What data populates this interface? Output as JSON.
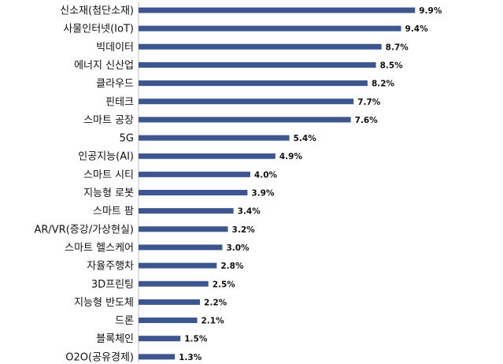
{
  "chart_data": {
    "type": "bar",
    "orientation": "horizontal",
    "categories": [
      "신소재(첨단소재)",
      "사물인터넷(IoT)",
      "빅데이터",
      "에너지 신산업",
      "클라우드",
      "핀테크",
      "스마트 공장",
      "5G",
      "인공지능(AI)",
      "스마트 시티",
      "지능형 로봇",
      "스마트 팜",
      "AR/VR(증강/가상현실)",
      "스마트 헬스케어",
      "자율주행차",
      "3D프린팅",
      "지능형 반도체",
      "드론",
      "블록체인",
      "O2O(공유경제)"
    ],
    "values": [
      9.9,
      9.4,
      8.7,
      8.5,
      8.2,
      7.7,
      7.6,
      5.4,
      4.9,
      4.0,
      3.9,
      3.4,
      3.2,
      3.0,
      2.8,
      2.5,
      2.2,
      2.1,
      1.5,
      1.3
    ],
    "value_labels": [
      "9.9%",
      "9.4%",
      "8.7%",
      "8.5%",
      "8.2%",
      "7.7%",
      "7.6%",
      "5.4%",
      "4.9%",
      "4.0%",
      "3.9%",
      "3.4%",
      "3.2%",
      "3.0%",
      "2.8%",
      "2.5%",
      "2.2%",
      "2.1%",
      "1.5%",
      "1.3%"
    ],
    "xlim": [
      0,
      10.4
    ],
    "bar_color": "#3e5690",
    "grid": false,
    "legend": "none"
  }
}
